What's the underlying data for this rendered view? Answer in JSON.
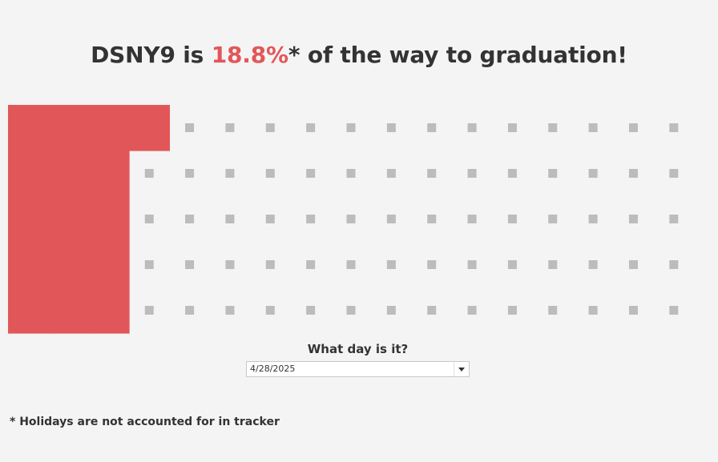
{
  "header": {
    "cohort": "DSNY9",
    "text_is": " is ",
    "percent": "18.8%",
    "text_rest": "* of the way to graduation!"
  },
  "filter": {
    "label": "What day is it?",
    "selected_date": "4/28/2025"
  },
  "footnote": "* Holidays are not accounted for in tracker",
  "colors": {
    "completed": "#e15759",
    "remaining": "#bcbcbc",
    "background": "#f4f4f4"
  },
  "chart_data": {
    "type": "waffle",
    "rows": 5,
    "columns": 17,
    "completed_fraction": 0.188,
    "completed_cells": 16,
    "total_cells": 85
  }
}
